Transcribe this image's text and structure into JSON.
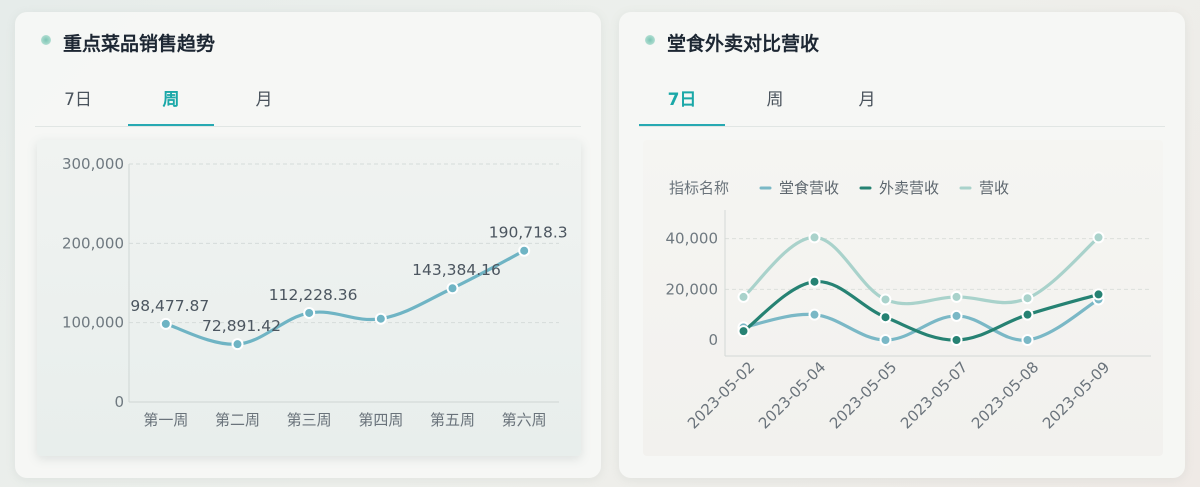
{
  "left_card": {
    "title": "重点菜品销售趋势",
    "tabs": [
      {
        "label": "7日"
      },
      {
        "label": "周"
      },
      {
        "label": "月"
      }
    ],
    "active_tab": 1
  },
  "right_card": {
    "title": "堂食外卖对比营收",
    "tabs": [
      {
        "label": "7日"
      },
      {
        "label": "周"
      },
      {
        "label": "月"
      }
    ],
    "active_tab": 0
  },
  "chart_data": [
    {
      "type": "line",
      "categories": [
        "第一周",
        "第二周",
        "第三周",
        "第四周",
        "第五周",
        "第六周"
      ],
      "series": [
        {
          "values": [
            98477.87,
            72891.42,
            112228.36,
            105000,
            143384.16,
            190718.3
          ],
          "labels": [
            "98,477.87",
            "72,891.42",
            "112,228.36",
            "",
            "143,384.16",
            "190,718.3"
          ],
          "color": "#6fb4c4"
        }
      ],
      "yticks": [
        "0",
        "100,000",
        "200,000",
        "300,000"
      ],
      "ylim": [
        0,
        300000
      ],
      "grid": true,
      "smooth": true
    },
    {
      "type": "line",
      "categories": [
        "2023-05-02",
        "2023-05-04",
        "2023-05-05",
        "2023-05-07",
        "2023-05-08",
        "2023-05-09"
      ],
      "legend_title": "指标名称",
      "legend_position": "top-left",
      "series": [
        {
          "name": "堂食营收",
          "values": [
            5000,
            10000,
            0,
            9500,
            0,
            16000
          ],
          "color": "#7ab8c6"
        },
        {
          "name": "外卖营收",
          "values": [
            3500,
            23000,
            9000,
            0,
            10000,
            18000
          ],
          "color": "#268273"
        },
        {
          "name": "营收",
          "values": [
            17000,
            40500,
            16000,
            17000,
            16500,
            40500
          ],
          "color": "#a9d2cb"
        }
      ],
      "yticks": [
        "0",
        "20,000",
        "40,000"
      ],
      "ylim": [
        0,
        45000
      ],
      "grid": true,
      "smooth": true
    }
  ]
}
